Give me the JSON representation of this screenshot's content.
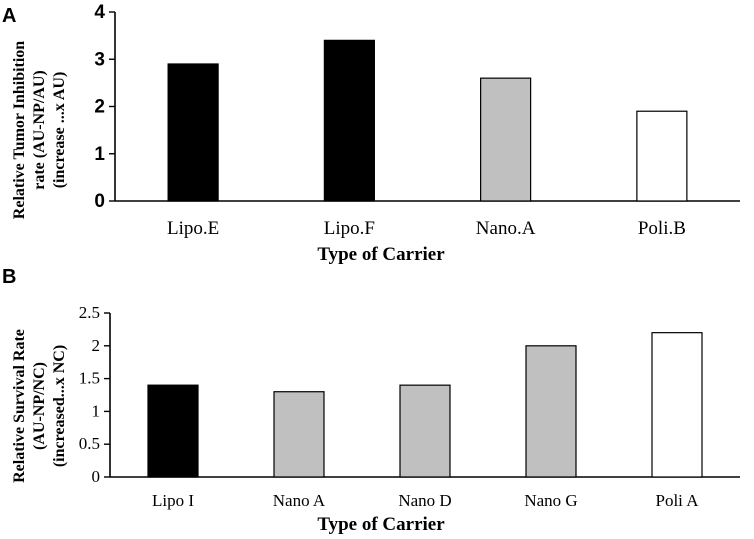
{
  "chart_data": [
    {
      "panel_label": "A",
      "type": "bar",
      "categories": [
        "Lipo.E",
        "Lipo.F",
        "Nano.A",
        "Poli.B"
      ],
      "values": [
        2.9,
        3.4,
        2.6,
        1.9
      ],
      "bar_fills": [
        "#000000",
        "#000000",
        "#c0c0c0",
        "#ffffff"
      ],
      "xlabel": "Type of Carrier",
      "ylabel_lines": [
        "Relative Tumor Inhibition",
        "rate (AU-NP/AU)",
        "(increase ...x AU)"
      ],
      "ylim": [
        0,
        4
      ],
      "yticks": [
        "0",
        "1",
        "2",
        "3",
        "4"
      ],
      "tick_values": [
        0,
        1,
        2,
        3,
        4
      ],
      "grid": false
    },
    {
      "panel_label": "B",
      "type": "bar",
      "categories": [
        "Lipo I",
        "Nano A",
        "Nano D",
        "Nano G",
        "Poli A"
      ],
      "values": [
        1.4,
        1.3,
        1.4,
        2.0,
        2.2
      ],
      "bar_fills": [
        "#000000",
        "#c0c0c0",
        "#c0c0c0",
        "#c0c0c0",
        "#ffffff"
      ],
      "xlabel": "Type of Carrier",
      "ylabel_lines": [
        "Relative Survival Rate",
        "(AU-NP/NC)",
        "(increased...x NC)"
      ],
      "ylim": [
        0,
        2.5
      ],
      "yticks": [
        "0",
        "0.5",
        "1",
        "1.5",
        "2",
        "2.5"
      ],
      "tick_values": [
        0,
        0.5,
        1,
        1.5,
        2,
        2.5
      ],
      "grid": false
    }
  ]
}
